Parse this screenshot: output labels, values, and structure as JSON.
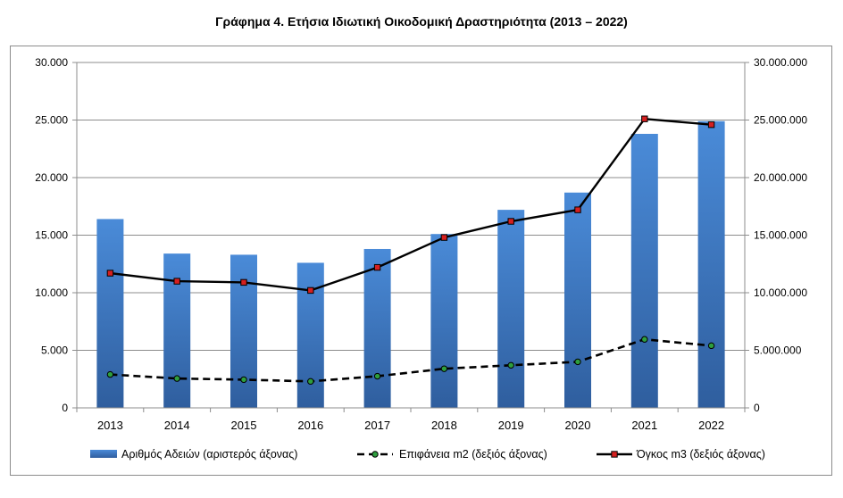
{
  "chart_data": {
    "type": "bar",
    "title": "Γράφημα 4. Ετήσια Ιδιωτική Οικοδομική Δραστηριότητα (2013 – 2022)",
    "categories": [
      "2013",
      "2014",
      "2015",
      "2016",
      "2017",
      "2018",
      "2019",
      "2020",
      "2021",
      "2022"
    ],
    "left_axis": {
      "ylim": [
        0,
        30000
      ],
      "ticks": [
        "0",
        "5.000",
        "10.000",
        "15.000",
        "20.000",
        "25.000",
        "30.000"
      ]
    },
    "right_axis": {
      "ylim": [
        0,
        30000000
      ],
      "ticks": [
        "0",
        "5.000.000",
        "10.000.000",
        "15.000.000",
        "20.000.000",
        "25.000.000",
        "30.000.000"
      ]
    },
    "grid": "horizontal",
    "legend_position": "bottom",
    "series": [
      {
        "name": "Αριθμός Αδειών (αριστερός άξονας)",
        "type": "bar",
        "axis": "left",
        "color": "#3F7FCF",
        "values": [
          16400,
          13400,
          13300,
          12600,
          13800,
          15100,
          17200,
          18700,
          23800,
          24900
        ]
      },
      {
        "name": "Επιφάνεια m2 (δεξιός άξονας)",
        "type": "line",
        "style": "dashed",
        "axis": "right",
        "color": "#000000",
        "marker_color": "#2E9E3E",
        "values": [
          2900000,
          2550000,
          2450000,
          2300000,
          2750000,
          3400000,
          3700000,
          4000000,
          5950000,
          5400000
        ]
      },
      {
        "name": "Όγκος m3 (δεξιός άξονας)",
        "type": "line",
        "style": "solid",
        "axis": "right",
        "color": "#000000",
        "marker_color": "#D42020",
        "values": [
          11700000,
          11000000,
          10900000,
          10200000,
          12200000,
          14800000,
          16200000,
          17200000,
          25100000,
          24600000
        ]
      }
    ]
  }
}
